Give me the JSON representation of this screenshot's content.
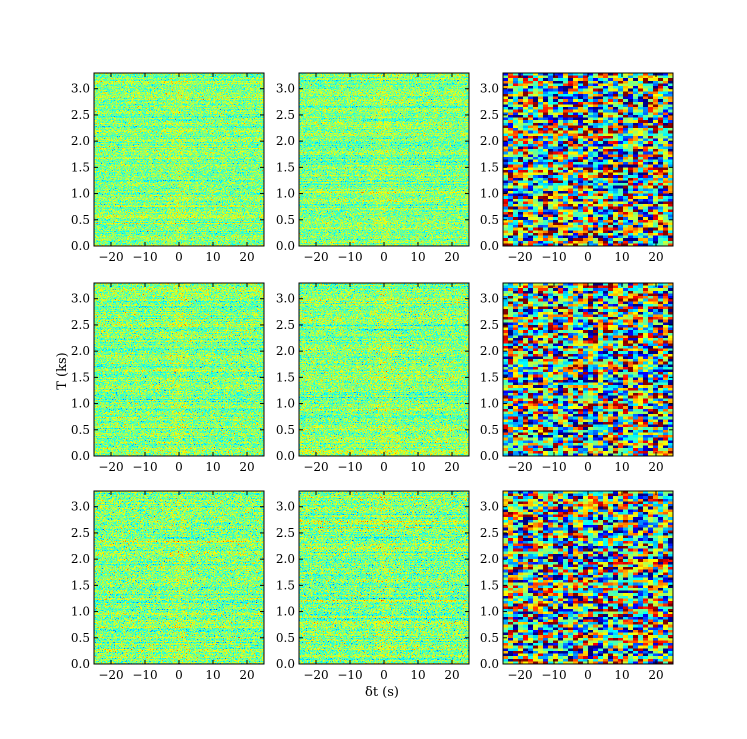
{
  "chart_data": {
    "type": "heatmap",
    "layout": {
      "rows": 3,
      "cols": 3
    },
    "xlabel": "δt (s)",
    "ylabel": "T (ks)",
    "xlim": [
      -25,
      25
    ],
    "ylim": [
      0,
      3.3
    ],
    "x_ticks": [
      -20,
      -10,
      0,
      10,
      20
    ],
    "y_ticks": [
      0.0,
      0.5,
      1.0,
      1.5,
      2.0,
      2.5,
      3.0
    ],
    "x_tick_labels": [
      "−20",
      "−10",
      "0",
      "10",
      "20"
    ],
    "y_tick_labels": [
      "0.0",
      "0.5",
      "1.0",
      "1.5",
      "2.0",
      "2.5",
      "3.0"
    ],
    "colormap": "jet",
    "panels": [
      {
        "row": 0,
        "col": 0,
        "variant": "fine",
        "amplitude": 0.12,
        "streaks": [
          2.4,
          1.25,
          2.05
        ],
        "seed": 11
      },
      {
        "row": 0,
        "col": 1,
        "variant": "fine",
        "amplitude": 0.12,
        "streaks": [
          2.4,
          1.25,
          2.05
        ],
        "seed": 12
      },
      {
        "row": 0,
        "col": 2,
        "variant": "coarse",
        "amplitude": 0.55,
        "streaks": [],
        "seed": 13
      },
      {
        "row": 1,
        "col": 0,
        "variant": "fine",
        "amplitude": 0.13,
        "streaks": [
          2.4,
          1.25
        ],
        "seed": 21
      },
      {
        "row": 1,
        "col": 1,
        "variant": "fine",
        "amplitude": 0.13,
        "streaks": [
          2.4,
          1.25
        ],
        "seed": 22
      },
      {
        "row": 1,
        "col": 2,
        "variant": "coarse",
        "amplitude": 0.55,
        "streaks": [],
        "seed": 23
      },
      {
        "row": 2,
        "col": 0,
        "variant": "fine",
        "amplitude": 0.14,
        "streaks": [
          2.4,
          1.25
        ],
        "seed": 31
      },
      {
        "row": 2,
        "col": 1,
        "variant": "fine",
        "amplitude": 0.14,
        "streaks": [
          2.4,
          1.25
        ],
        "seed": 32
      },
      {
        "row": 2,
        "col": 2,
        "variant": "coarse",
        "amplitude": 0.55,
        "streaks": [],
        "seed": 33
      }
    ]
  }
}
